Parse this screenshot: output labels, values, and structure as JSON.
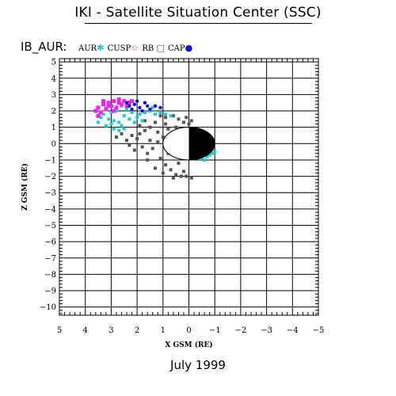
{
  "header": {
    "title": "IKI - Satellite Situation Center (SSC)",
    "instrument": "IB_AUR:"
  },
  "legend": [
    {
      "label": "AUR",
      "symbol": "asterisk",
      "glyph": "✱",
      "color": "#22cccc"
    },
    {
      "label": "CUSP",
      "symbol": "star",
      "glyph": "☆",
      "color": "#ee22ee"
    },
    {
      "label": "RB",
      "symbol": "square",
      "glyph": "□",
      "color": "#555555"
    },
    {
      "label": "CAP",
      "symbol": "dot",
      "glyph": "●",
      "color": "#1111cc"
    }
  ],
  "footer": {
    "date": "July   1999"
  },
  "chart_data": {
    "type": "scatter",
    "title": "IB_AUR:",
    "xlabel": "X GSM (RE)",
    "ylabel": "Z GSM (RE)",
    "xlim": [
      5,
      -5
    ],
    "ylim": [
      -10.5,
      5.2
    ],
    "x_ticks": [
      5,
      4,
      3,
      2,
      1,
      0,
      -1,
      -2,
      -3,
      -4,
      -5
    ],
    "x_tick_labels": [
      "5",
      "4",
      "3",
      "2",
      "1",
      "0",
      "−1",
      "−2",
      "−3",
      "−4",
      "−5"
    ],
    "y_ticks": [
      5,
      4,
      3,
      2,
      1,
      0,
      -1,
      -2,
      -3,
      -4,
      -5,
      -6,
      -7,
      -8,
      -9,
      -10
    ],
    "y_tick_labels": [
      "5",
      "4",
      "3",
      "2",
      "1",
      "0",
      "−1",
      "−2",
      "−3",
      "−4",
      "−5",
      "−6",
      "−7",
      "−8",
      "−9",
      "−10"
    ],
    "grid": true,
    "earth": {
      "center": [
        0,
        0
      ],
      "radius": 1,
      "night_side": "negative-x"
    },
    "series": [
      {
        "name": "RB",
        "color": "#555555",
        "points": [
          [
            1.1,
            1.7
          ],
          [
            0.9,
            1.6
          ],
          [
            0.6,
            1.7
          ],
          [
            0.4,
            1.5
          ],
          [
            0.2,
            1.3
          ],
          [
            0.1,
            1.6
          ],
          [
            0.0,
            1.2
          ],
          [
            -0.1,
            1.4
          ],
          [
            1.3,
            1.3
          ],
          [
            1.5,
            1.0
          ],
          [
            1.7,
            0.8
          ],
          [
            1.9,
            0.6
          ],
          [
            2.0,
            0.3
          ],
          [
            2.2,
            0.5
          ],
          [
            2.4,
            0.2
          ],
          [
            1.2,
            0.7
          ],
          [
            1.0,
            0.4
          ],
          [
            0.8,
            0.9
          ],
          [
            0.6,
            0.3
          ],
          [
            0.5,
            -0.2
          ],
          [
            1.4,
            -0.3
          ],
          [
            1.6,
            -0.6
          ],
          [
            1.1,
            -0.9
          ],
          [
            0.9,
            -1.3
          ],
          [
            0.7,
            -1.6
          ],
          [
            0.5,
            -1.9
          ],
          [
            0.3,
            -2.0
          ],
          [
            0.1,
            -2.0
          ],
          [
            -0.1,
            -2.1
          ],
          [
            0.4,
            -1.2
          ],
          [
            1.8,
            -0.2
          ],
          [
            2.1,
            -0.4
          ],
          [
            2.6,
            0.6
          ],
          [
            2.8,
            0.4
          ],
          [
            1.3,
            -1.5
          ],
          [
            1.0,
            -1.8
          ],
          [
            0.6,
            -2.1
          ],
          [
            0.2,
            -1.7
          ],
          [
            1.5,
            0.2
          ],
          [
            1.9,
            1.1
          ],
          [
            0.3,
            0.5
          ],
          [
            0.8,
            -0.6
          ],
          [
            1.2,
            0.1
          ],
          [
            2.3,
            -0.1
          ],
          [
            1.7,
            1.4
          ],
          [
            0.5,
            1.0
          ],
          [
            0.2,
            0.8
          ],
          [
            0.9,
            1.2
          ],
          [
            1.6,
            -1.0
          ],
          [
            0.7,
            -0.3
          ]
        ]
      },
      {
        "name": "AUR",
        "color": "#22cccc",
        "points": [
          [
            3.3,
            1.8
          ],
          [
            3.1,
            1.5
          ],
          [
            3.0,
            1.2
          ],
          [
            2.9,
            0.9
          ],
          [
            2.7,
            0.8
          ],
          [
            3.2,
            1.1
          ],
          [
            2.5,
            1.7
          ],
          [
            2.3,
            1.5
          ],
          [
            2.1,
            1.3
          ],
          [
            1.9,
            1.8
          ],
          [
            1.7,
            1.9
          ],
          [
            1.5,
            2.0
          ],
          [
            1.3,
            1.8
          ],
          [
            1.1,
            1.9
          ],
          [
            0.9,
            1.8
          ],
          [
            0.7,
            1.7
          ],
          [
            2.8,
            2.0
          ],
          [
            2.6,
            2.3
          ],
          [
            2.4,
            2.1
          ],
          [
            2.2,
            1.9
          ],
          [
            3.4,
            1.6
          ],
          [
            3.5,
            1.3
          ],
          [
            2.9,
            1.4
          ],
          [
            2.6,
            1.1
          ],
          [
            2.0,
            1.6
          ],
          [
            1.8,
            1.4
          ],
          [
            -0.5,
            -0.9
          ],
          [
            -0.7,
            -0.8
          ],
          [
            -0.9,
            -0.6
          ],
          [
            -1.0,
            -0.5
          ],
          [
            -0.8,
            -0.7
          ],
          [
            -0.6,
            -1.0
          ],
          [
            -0.9,
            -0.3
          ],
          [
            -0.4,
            -0.8
          ],
          [
            2.7,
            1.3
          ],
          [
            3.0,
            1.9
          ],
          [
            1.4,
            2.2
          ],
          [
            2.3,
            2.4
          ],
          [
            3.2,
            2.2
          ],
          [
            2.5,
            0.9
          ]
        ]
      },
      {
        "name": "CUSP",
        "color": "#ee22ee",
        "points": [
          [
            3.6,
            2.0
          ],
          [
            3.5,
            2.2
          ],
          [
            3.3,
            2.4
          ],
          [
            3.1,
            2.5
          ],
          [
            2.9,
            2.6
          ],
          [
            2.7,
            2.5
          ],
          [
            2.5,
            2.6
          ],
          [
            2.3,
            2.5
          ],
          [
            3.4,
            1.9
          ],
          [
            3.2,
            2.1
          ],
          [
            3.0,
            2.3
          ],
          [
            2.8,
            2.2
          ],
          [
            2.6,
            2.4
          ],
          [
            2.4,
            2.3
          ],
          [
            3.5,
            1.7
          ],
          [
            3.3,
            2.6
          ],
          [
            2.2,
            2.6
          ],
          [
            2.9,
            2.0
          ],
          [
            3.1,
            2.3
          ],
          [
            2.7,
            2.7
          ]
        ]
      },
      {
        "name": "CAP",
        "color": "#1111cc",
        "points": [
          [
            2.3,
            2.3
          ],
          [
            2.1,
            2.4
          ],
          [
            1.9,
            2.2
          ],
          [
            1.7,
            2.5
          ],
          [
            1.5,
            2.1
          ],
          [
            1.3,
            2.3
          ],
          [
            2.0,
            2.6
          ],
          [
            1.8,
            2.0
          ],
          [
            1.1,
            2.2
          ],
          [
            2.2,
            2.1
          ],
          [
            1.6,
            2.3
          ],
          [
            2.4,
            2.5
          ]
        ]
      }
    ]
  }
}
